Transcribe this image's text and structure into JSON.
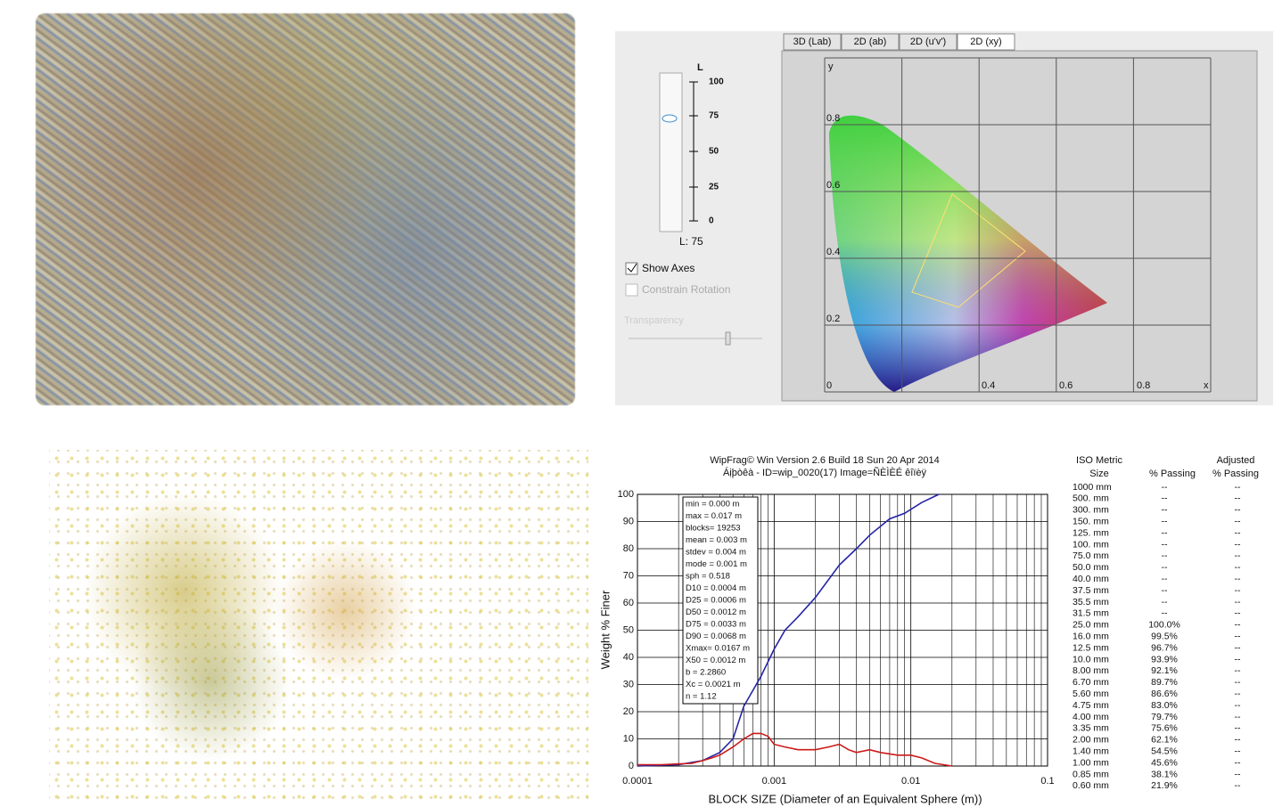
{
  "color_panel": {
    "tabs": [
      "3D (Lab)",
      "2D (ab)",
      "2D (u'v')",
      "2D (xy)"
    ],
    "slider_label": "L",
    "slider_ticks": [
      100,
      75,
      50,
      25,
      0
    ],
    "slider_value": "L: 75",
    "show_axes": "Show Axes",
    "constrain_rotation": "Constrain Rotation",
    "transparency": "Transparency",
    "y_axis": "y",
    "x_axis": "x",
    "y_ticks": [
      0.8,
      0.6,
      0.4,
      0.2,
      0
    ],
    "x_ticks": [
      0.4,
      0.6,
      0.8
    ]
  },
  "chart_data": {
    "type": "line",
    "title": "WipFrag© Win Version  2.6 Build 18 Sun 20 Apr 2014",
    "subtitle": "Áịþòêà -  ID=wip_0020(17) Image=ÑÈÌÈÉ êîïèÿ",
    "x_label": "BLOCK SIZE (Diameter of an Equivalent Sphere (m))",
    "y_label": "Weight % Finer",
    "x_log": true,
    "grid": true,
    "minor_grid": true,
    "xlim": [
      0.0001,
      0.1
    ],
    "xticks": [
      0.0001,
      0.001,
      0.01,
      0.1
    ],
    "ylim": [
      0,
      100
    ],
    "yticks": [
      0,
      10,
      20,
      30,
      40,
      50,
      60,
      70,
      80,
      90,
      100
    ],
    "series": [
      {
        "name": "cumulative",
        "color": "#2424a8",
        "x": [
          0.0001,
          0.0002,
          0.0003,
          0.0004,
          0.0005,
          0.0006,
          0.0008,
          0.001,
          0.0012,
          0.0015,
          0.002,
          0.003,
          0.004,
          0.005,
          0.007,
          0.009,
          0.012,
          0.016
        ],
        "values": [
          0,
          0.5,
          2,
          5,
          10,
          22,
          33,
          43,
          50,
          55,
          62,
          74,
          80,
          85,
          91,
          93,
          97,
          100
        ]
      },
      {
        "name": "distribution",
        "color": "#cc1a1a",
        "x": [
          0.0001,
          0.00015,
          0.0002,
          0.00025,
          0.0003,
          0.00035,
          0.0004,
          0.0005,
          0.0006,
          0.0007,
          0.0008,
          0.0009,
          0.001,
          0.0012,
          0.0015,
          0.002,
          0.0025,
          0.003,
          0.0035,
          0.004,
          0.005,
          0.006,
          0.008,
          0.01,
          0.012,
          0.015,
          0.02
        ],
        "values": [
          0.5,
          0.5,
          0.8,
          1,
          2,
          3,
          4,
          7,
          10,
          12,
          12,
          11,
          8,
          7,
          6,
          6,
          7,
          8,
          6,
          5,
          6,
          5,
          4,
          4,
          3,
          1,
          0
        ]
      }
    ],
    "annotations": [
      "min   = 0.000 m",
      "max   = 0.017 m",
      "blocks= 19253",
      "mean  = 0.003 m",
      "stdev = 0.004 m",
      "mode  = 0.001 m",
      "sph    = 0.518",
      "D10 = 0.0004 m",
      "D25 = 0.0006 m",
      "D50 = 0.0012 m",
      "D75 = 0.0033 m",
      "D90 = 0.0068 m",
      "Xmax= 0.0167 m",
      "X50 = 0.0012 m",
      "b   = 2.2860",
      "Xc   = 0.0021 m",
      "n   = 1.12"
    ]
  },
  "table": {
    "size_header": [
      "ISO Metric",
      "Size"
    ],
    "passing_header": "% Passing",
    "adjusted_header": [
      "Adjusted",
      "% Passing"
    ],
    "rows": [
      [
        "1000 mm",
        "--",
        "--"
      ],
      [
        "500. mm",
        "--",
        "--"
      ],
      [
        "300. mm",
        "--",
        "--"
      ],
      [
        "150. mm",
        "--",
        "--"
      ],
      [
        "125. mm",
        "--",
        "--"
      ],
      [
        "100. mm",
        "--",
        "--"
      ],
      [
        "75.0 mm",
        "--",
        "--"
      ],
      [
        "50.0 mm",
        "--",
        "--"
      ],
      [
        "40.0 mm",
        "--",
        "--"
      ],
      [
        "37.5 mm",
        "--",
        "--"
      ],
      [
        "35.5 mm",
        "--",
        "--"
      ],
      [
        "31.5 mm",
        "--",
        "--"
      ],
      [
        "25.0 mm",
        "100.0%",
        "--"
      ],
      [
        "16.0 mm",
        "99.5%",
        "--"
      ],
      [
        "12.5 mm",
        "96.7%",
        "--"
      ],
      [
        "10.0 mm",
        "93.9%",
        "--"
      ],
      [
        "8.00 mm",
        "92.1%",
        "--"
      ],
      [
        "6.70 mm",
        "89.7%",
        "--"
      ],
      [
        "5.60 mm",
        "86.6%",
        "--"
      ],
      [
        "4.75 mm",
        "83.0%",
        "--"
      ],
      [
        "4.00 mm",
        "79.7%",
        "--"
      ],
      [
        "3.35 mm",
        "75.6%",
        "--"
      ],
      [
        "2.00 mm",
        "62.1%",
        "--"
      ],
      [
        "1.40 mm",
        "54.5%",
        "--"
      ],
      [
        "1.00 mm",
        "45.6%",
        "--"
      ],
      [
        "0.85 mm",
        "38.1%",
        "--"
      ],
      [
        "0.60 mm",
        "21.9%",
        "--"
      ]
    ]
  }
}
